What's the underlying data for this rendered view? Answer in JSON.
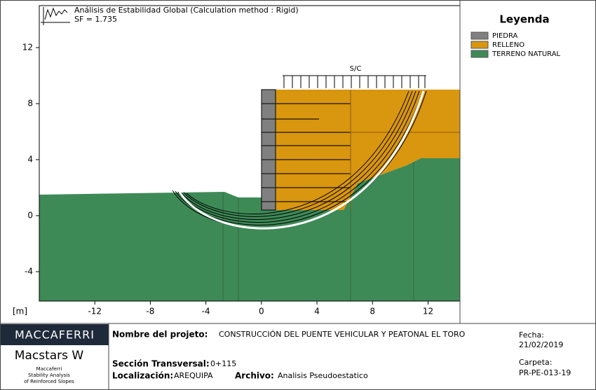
{
  "plot": {
    "title": "Análisis de Estabilidad Global (Calculation method : Rigid)",
    "sf": "SF = 1.735",
    "xlim": [
      -16,
      14.3
    ],
    "ylim": [
      -6.1,
      15
    ],
    "xticks": [
      -12,
      -8,
      -4,
      0,
      4,
      8,
      12
    ],
    "yticks": [
      -4,
      0,
      4,
      8,
      12
    ],
    "unit_label": "[m]",
    "surcharge_label": "S/C"
  },
  "legend": {
    "title": "Leyenda",
    "items": [
      {
        "label": "PIEDRA",
        "color": "#808080"
      },
      {
        "label": "RELLENO",
        "color": "#d9960f"
      },
      {
        "label": "TERRENO NATURAL",
        "color": "#3e8a57"
      }
    ]
  },
  "title_block": {
    "brand": "MACCAFERRI",
    "product": "Macstars W",
    "product_sub": [
      "Maccaferri",
      "Stability Analysis",
      "of Reinforced Slopes"
    ],
    "project_label": "Nombre del projeto:",
    "project": "CONSTRUCCIÓN DEL PUENTE VEHICULAR Y PEATONAL EL TORO",
    "date_label": "Fecha:",
    "date": "21/02/2019",
    "section_label": "Sección Transversal:",
    "section": "0+115",
    "location_label": "Localización:",
    "location": "AREQUIPA",
    "file_label": "Archivo:",
    "file": "Analisis Pseudoestatico",
    "folder_label": "Carpeta:",
    "folder": "PR-PE-013-19"
  }
}
